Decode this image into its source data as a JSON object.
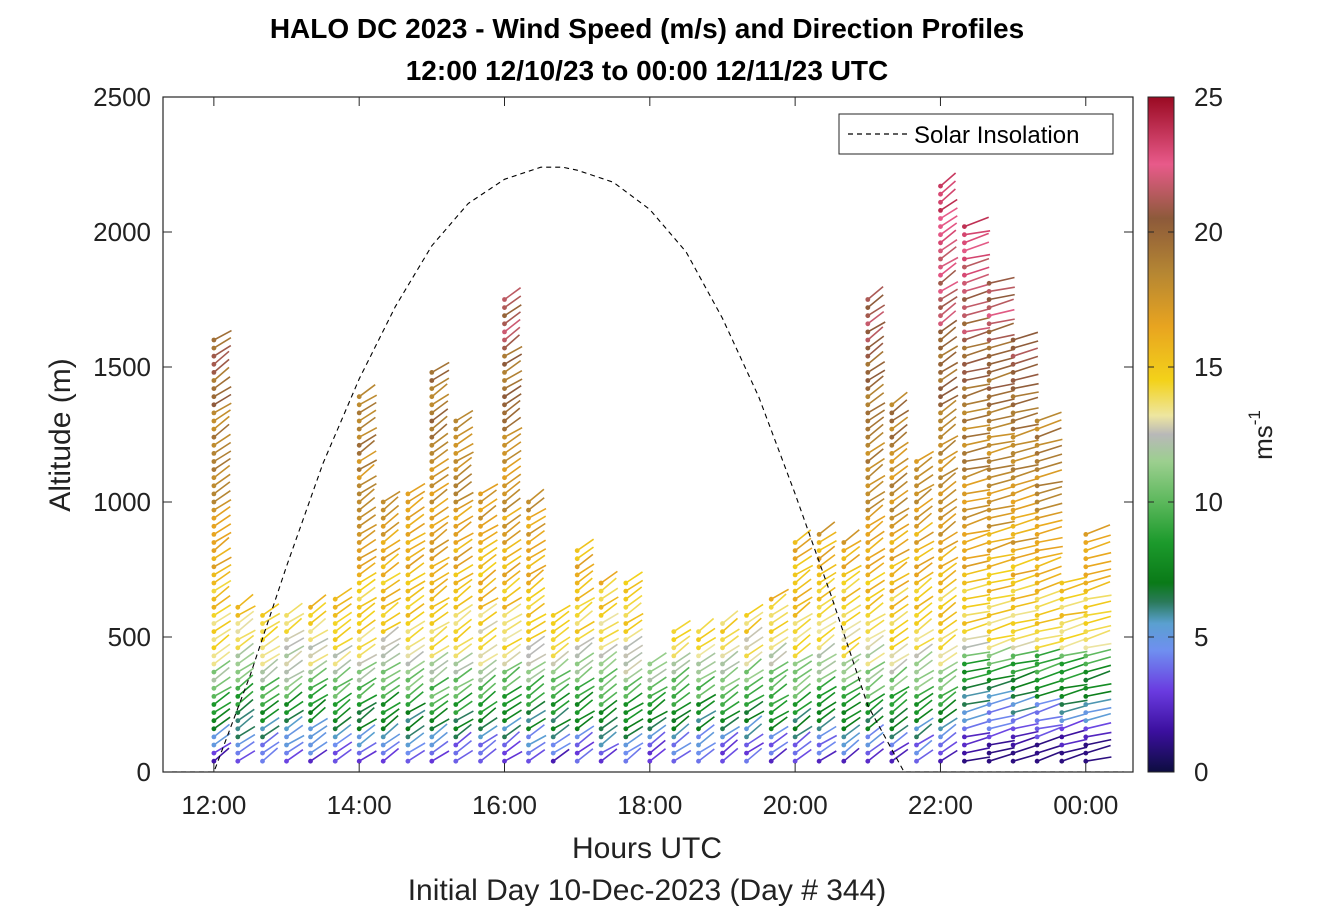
{
  "chart_data": {
    "type": "wind_barb_profile",
    "title": "HALO DC 2023 - Wind Speed (m/s) and Direction Profiles",
    "subtitle": "12:00 12/10/23 to 00:00 12/11/23  UTC",
    "xlabel": "Hours UTC",
    "xlabel2": "Initial Day 10-Dec-2023 (Day # 344)",
    "ylabel": "Altitude (m)",
    "x_tick_labels": [
      "12:00",
      "14:00",
      "16:00",
      "18:00",
      "20:00",
      "22:00",
      "00:00"
    ],
    "x_tick_hours": [
      12,
      14,
      16,
      18,
      20,
      22,
      24
    ],
    "xlim_hours": [
      11.3,
      24.65
    ],
    "y_ticks": [
      0,
      500,
      1000,
      1500,
      2000,
      2500
    ],
    "ylim": [
      0,
      2500
    ],
    "colorbar": {
      "label": "ms",
      "label_exponent": "-1",
      "ticks": [
        0,
        5,
        10,
        15,
        20,
        25
      ],
      "range": [
        0,
        25
      ],
      "stops": [
        {
          "v": 0,
          "c": "#0d0d40"
        },
        {
          "v": 1.5,
          "c": "#3b0f9e"
        },
        {
          "v": 3,
          "c": "#6a3be0"
        },
        {
          "v": 4.5,
          "c": "#6f8ff0"
        },
        {
          "v": 5.5,
          "c": "#5aa0d0"
        },
        {
          "v": 6.3,
          "c": "#2a7a5a"
        },
        {
          "v": 7,
          "c": "#0a7a18"
        },
        {
          "v": 8.5,
          "c": "#1c9a2c"
        },
        {
          "v": 10,
          "c": "#5cb85c"
        },
        {
          "v": 11.5,
          "c": "#9ccf8f"
        },
        {
          "v": 12.5,
          "c": "#b8b8b8"
        },
        {
          "v": 13.2,
          "c": "#eee6a0"
        },
        {
          "v": 14.5,
          "c": "#f3d21a"
        },
        {
          "v": 16.5,
          "c": "#e8a420"
        },
        {
          "v": 18.5,
          "c": "#b58633"
        },
        {
          "v": 20.5,
          "c": "#8d5a3a"
        },
        {
          "v": 22.5,
          "c": "#e85a8a"
        },
        {
          "v": 25,
          "c": "#9a0a22"
        }
      ]
    },
    "legend": {
      "entries": [
        "Solar Insolation"
      ],
      "location": "top-right",
      "style": "dashed"
    },
    "solar_insolation": {
      "x_hours": [
        11.3,
        12.0,
        12.5,
        13.0,
        13.5,
        14.0,
        14.5,
        15.0,
        15.5,
        16.0,
        16.5,
        16.8,
        17.0,
        17.5,
        18.0,
        18.5,
        19.0,
        19.5,
        20.0,
        20.5,
        21.0,
        21.5,
        21.8,
        24.65
      ],
      "relative": [
        0,
        0,
        0.16,
        0.34,
        0.51,
        0.65,
        0.77,
        0.87,
        0.94,
        0.98,
        1.0,
        1.0,
        0.995,
        0.975,
        0.93,
        0.86,
        0.75,
        0.62,
        0.46,
        0.29,
        0.11,
        0.0,
        0,
        0
      ]
    },
    "profile_times_hours": [
      12.0,
      12.33,
      12.67,
      13.0,
      13.33,
      13.67,
      14.0,
      14.33,
      14.67,
      15.0,
      15.33,
      15.67,
      16.0,
      16.33,
      16.67,
      17.0,
      17.33,
      17.67,
      18.0,
      18.33,
      18.67,
      19.0,
      19.33,
      19.67,
      20.0,
      20.33,
      20.67,
      21.0,
      21.33,
      21.67,
      22.0,
      22.33,
      22.67,
      23.0,
      23.33,
      23.67,
      24.0
    ],
    "profile_top_altitudes_m": [
      1620,
      620,
      580,
      580,
      620,
      660,
      1400,
      1000,
      1050,
      1500,
      1300,
      1050,
      1750,
      1000,
      580,
      820,
      720,
      720,
      420,
      540,
      520,
      560,
      600,
      640,
      860,
      880,
      860,
      1750,
      1380,
      1150,
      2170,
      2040,
      1820,
      1620,
      1300,
      720,
      900
    ],
    "speed_profile_m_s": [
      {
        "alt": 50,
        "speed": 3
      },
      {
        "alt": 150,
        "speed": 6
      },
      {
        "alt": 300,
        "speed": 10
      },
      {
        "alt": 450,
        "speed": 13.5
      },
      {
        "alt": 700,
        "speed": 15.5
      },
      {
        "alt": 1000,
        "speed": 17.5
      },
      {
        "alt": 1500,
        "speed": 20
      },
      {
        "alt": 2000,
        "speed": 23
      }
    ],
    "direction_note": "barbs from south-west in the lower levels, near-westerly in the final profiles"
  }
}
